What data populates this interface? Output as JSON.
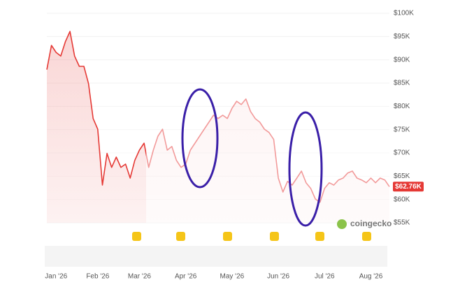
{
  "chart_data": {
    "type": "line",
    "categories": [
      null,
      null,
      "Jan '26",
      null,
      null,
      null,
      null,
      null,
      null,
      null,
      null,
      "Feb '26",
      null,
      null,
      null,
      null,
      null,
      null,
      null,
      null,
      "Mar '26",
      null,
      null,
      null,
      null,
      null,
      null,
      null,
      null,
      null,
      "Apr '26",
      null,
      null,
      null,
      null,
      null,
      null,
      null,
      null,
      null,
      "May '26",
      null,
      null,
      null,
      null,
      null,
      null,
      null,
      null,
      null,
      "Jun '26",
      null,
      null,
      null,
      null,
      null,
      null,
      null,
      null,
      null,
      "Jul '26",
      null,
      null,
      null,
      null,
      null,
      null,
      null,
      null,
      null,
      "Aug '26",
      null,
      null,
      null,
      null
    ],
    "values": [
      87900,
      93100,
      91600,
      90800,
      93900,
      96100,
      90800,
      88600,
      88600,
      84900,
      77400,
      75100,
      63100,
      69900,
      66900,
      69100,
      66900,
      67600,
      64600,
      68400,
      70600,
      72100,
      66900,
      70600,
      73600,
      75100,
      70600,
      71400,
      68400,
      66900,
      67600,
      70600,
      72100,
      73600,
      75100,
      76600,
      78100,
      77400,
      78100,
      77400,
      79600,
      81100,
      80400,
      81600,
      78900,
      77400,
      76600,
      75100,
      74400,
      72900,
      64600,
      61600,
      63900,
      63100,
      64600,
      66100,
      63600,
      62400,
      60100,
      59400,
      62400,
      63600,
      63100,
      64200,
      64600,
      65700,
      66100,
      64600,
      64200,
      63600,
      64600,
      63600,
      64600,
      64200,
      62760
    ],
    "color": "#e53935",
    "last_price": {
      "value": 62760,
      "label": "$62.76K"
    },
    "watermark": "coingecko",
    "ylim": [
      55000,
      100000
    ],
    "yticks": [
      {
        "value": 100000,
        "label": "$100K"
      },
      {
        "value": 95000,
        "label": "$95K"
      },
      {
        "value": 90000,
        "label": "$90K"
      },
      {
        "value": 85000,
        "label": "$85K"
      },
      {
        "value": 80000,
        "label": "$80K"
      },
      {
        "value": 75000,
        "label": "$75K"
      },
      {
        "value": 70000,
        "label": "$70K"
      },
      {
        "value": 65000,
        "label": "$65K"
      },
      {
        "value": 60000,
        "label": "$60K"
      },
      {
        "value": 55000,
        "label": "$55K"
      }
    ],
    "grid": true
  }
}
